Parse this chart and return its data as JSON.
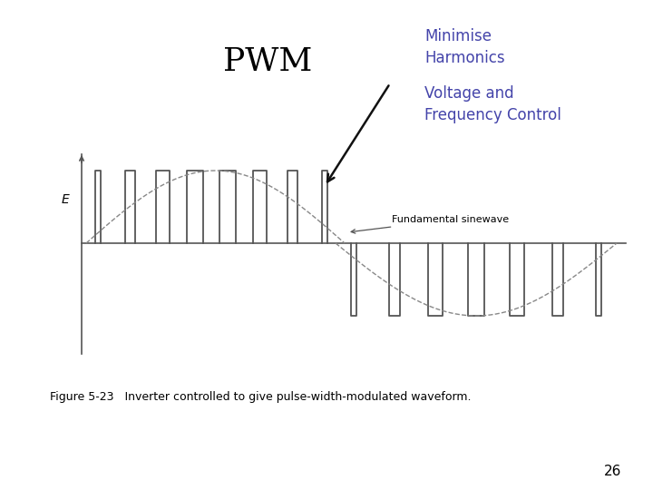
{
  "title_pwm": "PWM",
  "text_minimise": "Minimise\nHarmonics",
  "text_voltage": "Voltage and\nFrequency Control",
  "text_color": "#4444aa",
  "figure_caption": "Figure 5-23   Inverter controlled to give pulse-width-modulated waveform.",
  "page_number": "26",
  "background_color": "#ffffff",
  "waveform_color": "#555555",
  "sine_color": "#888888",
  "arrow_color": "#111111",
  "pwm_fontsize": 26,
  "label_fontsize": 12,
  "caption_fontsize": 9,
  "page_fontsize": 11
}
